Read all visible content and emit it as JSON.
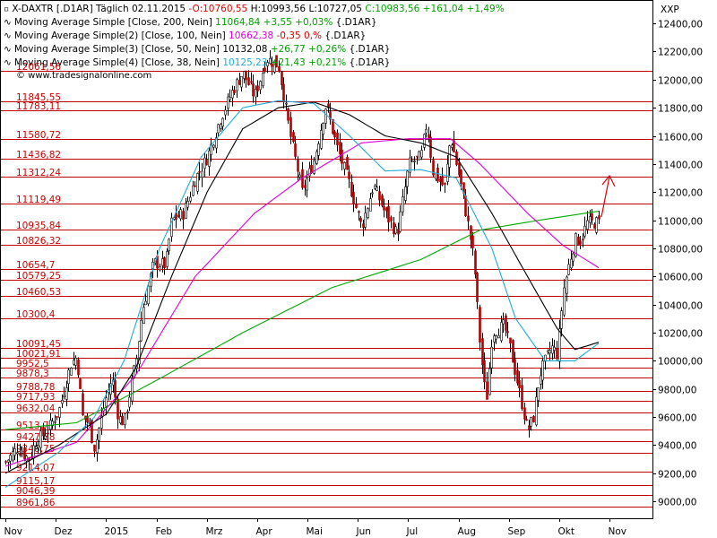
{
  "chart_data": {
    "type": "candlestick",
    "symbol": "X-DAXTR [.D1AR]",
    "interval": "Täglich",
    "date": "02.11.2015",
    "ohlc_label": {
      "O": "10760,55",
      "H": "10993,56",
      "L": "10727,05",
      "C": "10983,56",
      "change": "+161,04",
      "change_pct": "+1,49%"
    },
    "axis_label": "XXP",
    "y_ticks": [
      9000,
      9200,
      9400,
      9600,
      9800,
      10000,
      10200,
      10400,
      10600,
      10800,
      11000,
      11200,
      11400,
      11600,
      11800,
      12000,
      12200,
      12400
    ],
    "y_tick_labels": [
      "9000,00",
      "9200,00",
      "9400,00",
      "9600,00",
      "9800,00",
      "10000,00",
      "10200,00",
      "10400,00",
      "10600,00",
      "10800,00",
      "11000,00",
      "11200,00",
      "11400,00",
      "11600,00",
      "11800,00",
      "12000,00",
      "12200,00",
      "12400,00"
    ],
    "ylim": [
      8880,
      12560
    ],
    "x_months": [
      "Nov",
      "Dez",
      "2015",
      "Feb",
      "Mrz",
      "Apr",
      "Mai",
      "Jun",
      "Jul",
      "Aug",
      "Sep",
      "Okt",
      "Nov"
    ],
    "h_levels": [
      {
        "value": 12061,
        "label": "12061,56"
      },
      {
        "value": 11845.55,
        "label": "11845,55"
      },
      {
        "value": 11783.11,
        "label": "11783,11"
      },
      {
        "value": 11580.72,
        "label": "11580,72"
      },
      {
        "value": 11436.82,
        "label": "11436,82"
      },
      {
        "value": 11312.24,
        "label": "11312,24"
      },
      {
        "value": 11119.49,
        "label": "11119,49"
      },
      {
        "value": 10935.84,
        "label": "10935,84"
      },
      {
        "value": 10826.32,
        "label": "10826,32"
      },
      {
        "value": 10654.7,
        "label": "10654,7"
      },
      {
        "value": 10579.25,
        "label": "10579,25"
      },
      {
        "value": 10460.53,
        "label": "10460,53"
      },
      {
        "value": 10300.4,
        "label": "10300,4"
      },
      {
        "value": 10091.45,
        "label": "10091,45"
      },
      {
        "value": 10021.91,
        "label": "10021,91"
      },
      {
        "value": 9952.5,
        "label": "9952,5"
      },
      {
        "value": 9878.3,
        "label": "9878,3"
      },
      {
        "value": 9788.78,
        "label": "9788,78"
      },
      {
        "value": 9717.93,
        "label": "9717,93"
      },
      {
        "value": 9632.04,
        "label": "9632,04"
      },
      {
        "value": 9513.7,
        "label": "9513,7"
      },
      {
        "value": 9427.88,
        "label": "9427,88"
      },
      {
        "value": 9348.75,
        "label": "9348,75"
      },
      {
        "value": 9214.07,
        "label": "9214,07"
      },
      {
        "value": 9115.17,
        "label": "9115,17"
      },
      {
        "value": 9046.39,
        "label": "9046,39"
      },
      {
        "value": 8961.86,
        "label": "8961,86"
      }
    ],
    "close_path": [
      [
        0,
        9280
      ],
      [
        0.02,
        9380
      ],
      [
        0.04,
        9300
      ],
      [
        0.05,
        9420
      ],
      [
        0.07,
        9500
      ],
      [
        0.09,
        9650
      ],
      [
        0.11,
        9980
      ],
      [
        0.12,
        10030
      ],
      [
        0.13,
        9600
      ],
      [
        0.14,
        9560
      ],
      [
        0.15,
        9380
      ],
      [
        0.17,
        9750
      ],
      [
        0.18,
        9880
      ],
      [
        0.19,
        9600
      ],
      [
        0.2,
        9560
      ],
      [
        0.21,
        9790
      ],
      [
        0.22,
        10000
      ],
      [
        0.23,
        10350
      ],
      [
        0.25,
        10700
      ],
      [
        0.27,
        10680
      ],
      [
        0.28,
        11000
      ],
      [
        0.3,
        11050
      ],
      [
        0.32,
        11300
      ],
      [
        0.34,
        11450
      ],
      [
        0.36,
        11700
      ],
      [
        0.38,
        11900
      ],
      [
        0.4,
        12050
      ],
      [
        0.42,
        11880
      ],
      [
        0.44,
        12150
      ],
      [
        0.46,
        12100
      ],
      [
        0.48,
        11600
      ],
      [
        0.5,
        11200
      ],
      [
        0.52,
        11430
      ],
      [
        0.54,
        11820
      ],
      [
        0.56,
        11500
      ],
      [
        0.58,
        11250
      ],
      [
        0.6,
        10950
      ],
      [
        0.62,
        11250
      ],
      [
        0.64,
        11050
      ],
      [
        0.66,
        10900
      ],
      [
        0.68,
        11400
      ],
      [
        0.7,
        11450
      ],
      [
        0.71,
        11700
      ],
      [
        0.72,
        11350
      ],
      [
        0.74,
        11230
      ],
      [
        0.75,
        11600
      ],
      [
        0.77,
        11200
      ],
      [
        0.78,
        10960
      ],
      [
        0.79,
        10700
      ],
      [
        0.8,
        10100
      ],
      [
        0.81,
        9700
      ],
      [
        0.82,
        10200
      ],
      [
        0.84,
        10250
      ],
      [
        0.85,
        10100
      ],
      [
        0.86,
        9900
      ],
      [
        0.87,
        9700
      ],
      [
        0.88,
        9500
      ],
      [
        0.89,
        9600
      ],
      [
        0.9,
        9900
      ],
      [
        0.91,
        10000
      ],
      [
        0.92,
        10100
      ],
      [
        0.93,
        10050
      ],
      [
        0.94,
        10500
      ],
      [
        0.95,
        10700
      ],
      [
        0.96,
        10860
      ],
      [
        0.97,
        10860
      ],
      [
        0.98,
        10983
      ]
    ],
    "indicators": [
      {
        "name": "Moving Average Simple",
        "params": "[Close, 200, Nein]",
        "value": "11064,84",
        "change": "+3,55",
        "change_pct": "+0,03%",
        "color": "#00aa00",
        "path": [
          [
            0,
            9510
          ],
          [
            0.12,
            9560
          ],
          [
            0.25,
            9850
          ],
          [
            0.4,
            10200
          ],
          [
            0.55,
            10520
          ],
          [
            0.7,
            10720
          ],
          [
            0.8,
            10930
          ],
          [
            0.9,
            11000
          ],
          [
            1,
            11064
          ]
        ]
      },
      {
        "name": "Moving Average Simple(2)",
        "params": "[Close, 100, Nein]",
        "value": "10662,38",
        "change": "-0,35",
        "change_pct": "0,%",
        "color": "#dd00dd",
        "path": [
          [
            0,
            9250
          ],
          [
            0.12,
            9420
          ],
          [
            0.22,
            9900
          ],
          [
            0.32,
            10600
          ],
          [
            0.42,
            11050
          ],
          [
            0.5,
            11300
          ],
          [
            0.6,
            11550
          ],
          [
            0.68,
            11580
          ],
          [
            0.75,
            11580
          ],
          [
            0.8,
            11400
          ],
          [
            0.88,
            11050
          ],
          [
            0.94,
            10820
          ],
          [
            1,
            10662
          ]
        ]
      },
      {
        "name": "Moving Average Simple(3)",
        "params": "[Close, 50, Nein]",
        "value": "10132,08",
        "change": "+26,77",
        "change_pct": "+0,26%",
        "color": "#000000",
        "path": [
          [
            0,
            9200
          ],
          [
            0.09,
            9400
          ],
          [
            0.17,
            9620
          ],
          [
            0.22,
            9950
          ],
          [
            0.28,
            10600
          ],
          [
            0.34,
            11200
          ],
          [
            0.4,
            11650
          ],
          [
            0.46,
            11800
          ],
          [
            0.52,
            11840
          ],
          [
            0.58,
            11750
          ],
          [
            0.64,
            11600
          ],
          [
            0.7,
            11550
          ],
          [
            0.76,
            11450
          ],
          [
            0.82,
            11050
          ],
          [
            0.88,
            10600
          ],
          [
            0.93,
            10230
          ],
          [
            0.96,
            10080
          ],
          [
            1,
            10132
          ]
        ]
      },
      {
        "name": "Moving Average Simple(4)",
        "params": "[Close, 38, Nein]",
        "value": "10125,23",
        "change": "+21,43",
        "change_pct": "+0,21%",
        "color": "#20aadd",
        "path": [
          [
            0,
            9100
          ],
          [
            0.09,
            9350
          ],
          [
            0.15,
            9600
          ],
          [
            0.2,
            10000
          ],
          [
            0.26,
            10800
          ],
          [
            0.33,
            11450
          ],
          [
            0.4,
            11800
          ],
          [
            0.46,
            11850
          ],
          [
            0.52,
            11830
          ],
          [
            0.58,
            11600
          ],
          [
            0.64,
            11350
          ],
          [
            0.7,
            11360
          ],
          [
            0.76,
            11300
          ],
          [
            0.82,
            10800
          ],
          [
            0.86,
            10300
          ],
          [
            0.91,
            10000
          ],
          [
            0.96,
            10000
          ],
          [
            1,
            10125
          ]
        ]
      }
    ]
  },
  "watermark": "© www.tradesignalonline.com"
}
